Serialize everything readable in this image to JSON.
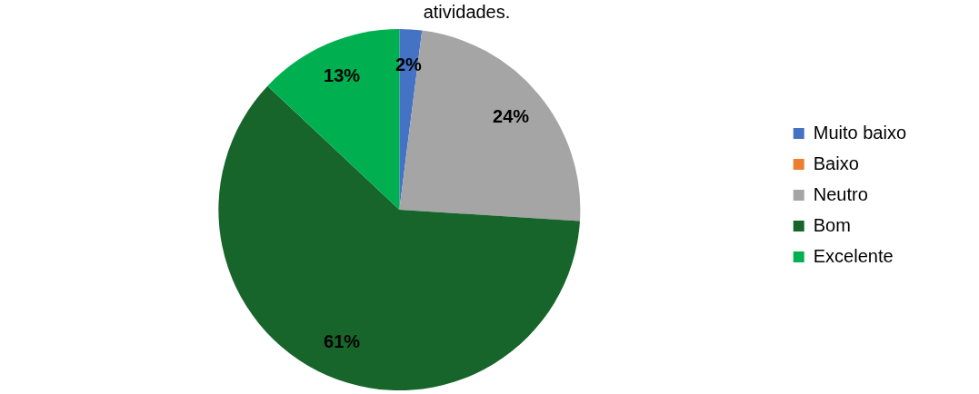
{
  "chart_data": {
    "type": "pie",
    "title": "atividades.",
    "categories": [
      "Muito baixo",
      "Baixo",
      "Neutro",
      "Bom",
      "Excelente"
    ],
    "values": [
      2,
      0,
      24,
      61,
      13
    ],
    "colors": [
      "#4472c4",
      "#ed7d31",
      "#a5a5a5",
      "#17652b",
      "#00b050"
    ],
    "value_labels": [
      "2%",
      null,
      "24%",
      "61%",
      "13%"
    ],
    "legend": "right"
  }
}
